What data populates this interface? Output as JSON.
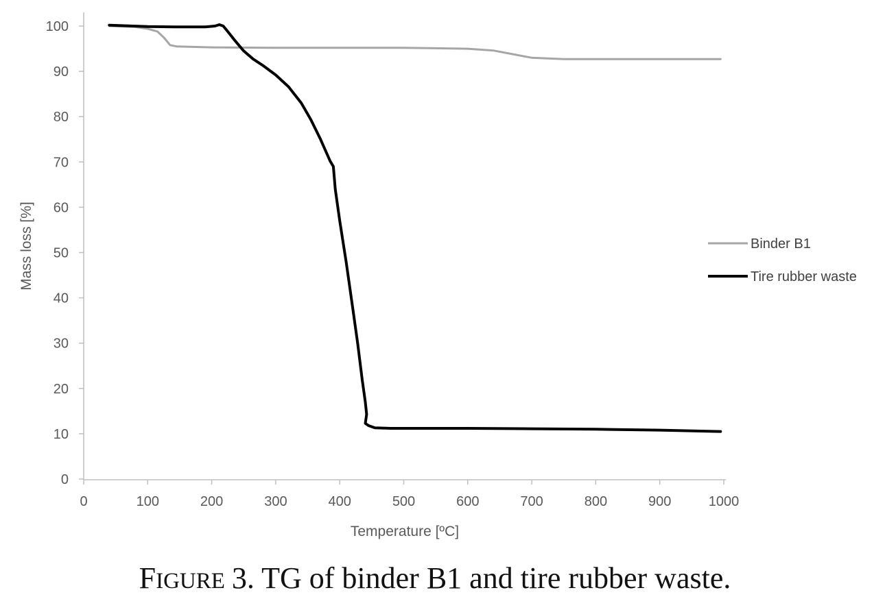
{
  "chart_data": {
    "type": "line",
    "title": "",
    "xlabel": "Temperature [ºC]",
    "ylabel": "Mass loss [%]",
    "xlim": [
      0,
      1000
    ],
    "ylim": [
      0,
      100
    ],
    "x_ticks": [
      "0",
      "100",
      "200",
      "300",
      "400",
      "500",
      "600",
      "700",
      "800",
      "900",
      "1000"
    ],
    "y_ticks": [
      "0",
      "10",
      "20",
      "30",
      "40",
      "50",
      "60",
      "70",
      "80",
      "90",
      "100"
    ],
    "grid": false,
    "legend_position": "right",
    "series": [
      {
        "name": "Binder B1",
        "color": "#a6a6a6",
        "points": [
          [
            40,
            100
          ],
          [
            80,
            99.8
          ],
          [
            100,
            99.4
          ],
          [
            115,
            98.8
          ],
          [
            125,
            97.5
          ],
          [
            135,
            95.8
          ],
          [
            145,
            95.5
          ],
          [
            200,
            95.3
          ],
          [
            300,
            95.2
          ],
          [
            400,
            95.2
          ],
          [
            500,
            95.2
          ],
          [
            600,
            95.0
          ],
          [
            640,
            94.6
          ],
          [
            670,
            93.8
          ],
          [
            700,
            93.0
          ],
          [
            750,
            92.7
          ],
          [
            800,
            92.7
          ],
          [
            900,
            92.7
          ],
          [
            995,
            92.7
          ]
        ]
      },
      {
        "name": "Tire rubber waste",
        "color": "#000000",
        "points": [
          [
            40,
            100.2
          ],
          [
            100,
            99.9
          ],
          [
            150,
            99.8
          ],
          [
            190,
            99.8
          ],
          [
            205,
            100.0
          ],
          [
            212,
            100.3
          ],
          [
            218,
            100.0
          ],
          [
            225,
            98.8
          ],
          [
            235,
            97.0
          ],
          [
            250,
            94.5
          ],
          [
            265,
            92.7
          ],
          [
            280,
            91.3
          ],
          [
            300,
            89.2
          ],
          [
            320,
            86.6
          ],
          [
            340,
            83.0
          ],
          [
            355,
            79.3
          ],
          [
            370,
            75.0
          ],
          [
            385,
            70.2
          ],
          [
            390,
            69.0
          ],
          [
            393,
            64.0
          ],
          [
            400,
            57.0
          ],
          [
            410,
            48.0
          ],
          [
            420,
            38.0
          ],
          [
            428,
            30.0
          ],
          [
            435,
            22.0
          ],
          [
            440,
            17.0
          ],
          [
            442,
            14.3
          ],
          [
            440,
            12.3
          ],
          [
            445,
            11.8
          ],
          [
            455,
            11.3
          ],
          [
            480,
            11.2
          ],
          [
            600,
            11.2
          ],
          [
            700,
            11.1
          ],
          [
            800,
            11.0
          ],
          [
            900,
            10.8
          ],
          [
            995,
            10.5
          ]
        ]
      }
    ]
  },
  "caption": {
    "figure_word_initial": "F",
    "figure_word_rest": "IGURE",
    "text": "3. TG of binder B1 and tire rubber waste."
  }
}
